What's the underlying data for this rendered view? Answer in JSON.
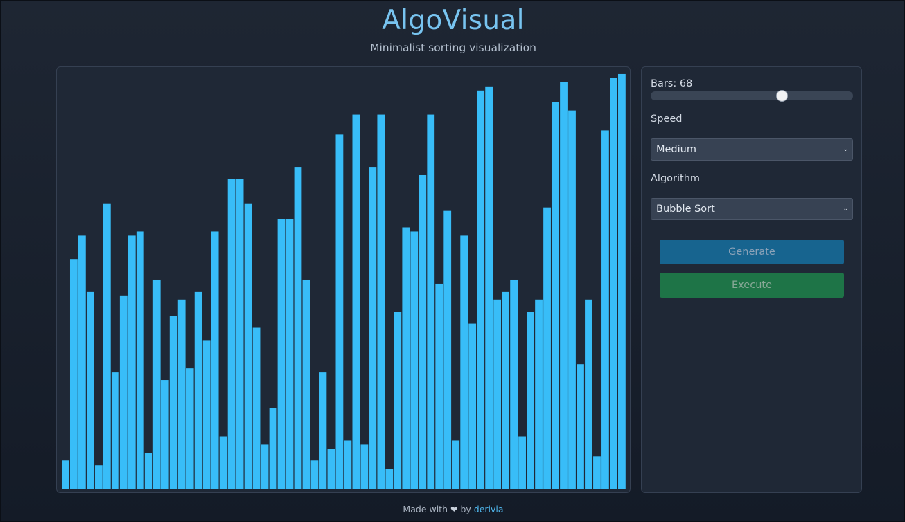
{
  "header": {
    "title": "AlgoVisual",
    "subtitle": "Minimalist sorting visualization"
  },
  "chart_data": {
    "type": "bar",
    "bar_color": "#38bdf8",
    "values": [
      41,
      334,
      368,
      286,
      34,
      415,
      169,
      281,
      368,
      374,
      52,
      304,
      158,
      251,
      275,
      175,
      286,
      216,
      374,
      76,
      450,
      450,
      415,
      234,
      64,
      117,
      392,
      392,
      468,
      304,
      41,
      169,
      58,
      515,
      70,
      544,
      64,
      468,
      544,
      29,
      257,
      380,
      374,
      456,
      544,
      298,
      404,
      70,
      368,
      240,
      579,
      585,
      275,
      286,
      304,
      76,
      257,
      275,
      409,
      562,
      591,
      550,
      181,
      275,
      47,
      521,
      597,
      603
    ],
    "ylim": [
      0,
      610
    ]
  },
  "controls": {
    "bars_label": "Bars: 68",
    "bars_value": 68,
    "bars_slider_fraction": 0.65,
    "speed_label": "Speed",
    "speed_value": "Medium",
    "algorithm_label": "Algorithm",
    "algorithm_value": "Bubble Sort",
    "generate_label": "Generate",
    "execute_label": "Execute"
  },
  "footer": {
    "made_with": "Made with",
    "by": "by",
    "author": "derivia"
  },
  "icons": {
    "heart": "heart-icon",
    "chevron": "chevron-down-icon"
  },
  "colors": {
    "title": "#78c4f0",
    "bar": "#38bdf8",
    "generate": "#17648f",
    "execute": "#1e7447",
    "link": "#4fb6ec"
  }
}
